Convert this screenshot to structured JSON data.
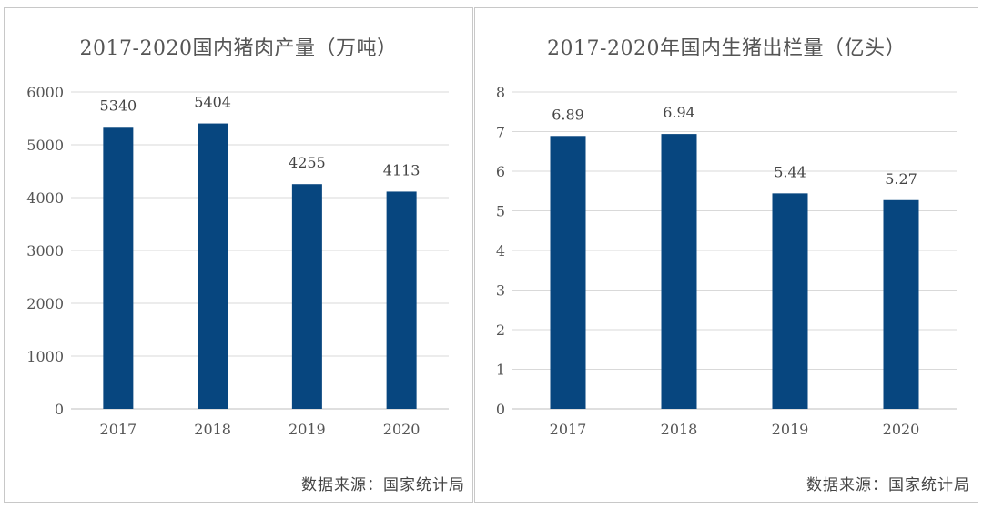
{
  "chart_data": [
    {
      "type": "bar",
      "title": "2017-2020国内猪肉产量（万吨）",
      "categories": [
        "2017",
        "2018",
        "2019",
        "2020"
      ],
      "values": [
        5340,
        5404,
        4255,
        4113
      ],
      "data_labels": [
        "5340",
        "5404",
        "4255",
        "4113"
      ],
      "ylim": [
        0,
        6000
      ],
      "yticks": [
        0,
        1000,
        2000,
        3000,
        4000,
        5000,
        6000
      ],
      "xlabel": "",
      "ylabel": "",
      "grid": true,
      "color": "#07467f"
    },
    {
      "type": "bar",
      "title": "2017-2020年国内生猪出栏量（亿头）",
      "categories": [
        "2017",
        "2018",
        "2019",
        "2020"
      ],
      "values": [
        6.89,
        6.94,
        5.44,
        5.27
      ],
      "data_labels": [
        "6.89",
        "6.94",
        "5.44",
        "5.27"
      ],
      "ylim": [
        0,
        8
      ],
      "yticks": [
        0,
        1,
        2,
        3,
        4,
        5,
        6,
        7,
        8
      ],
      "xlabel": "",
      "ylabel": "",
      "grid": true,
      "color": "#07467f"
    }
  ],
  "source_label": "数据来源：国家统计局"
}
